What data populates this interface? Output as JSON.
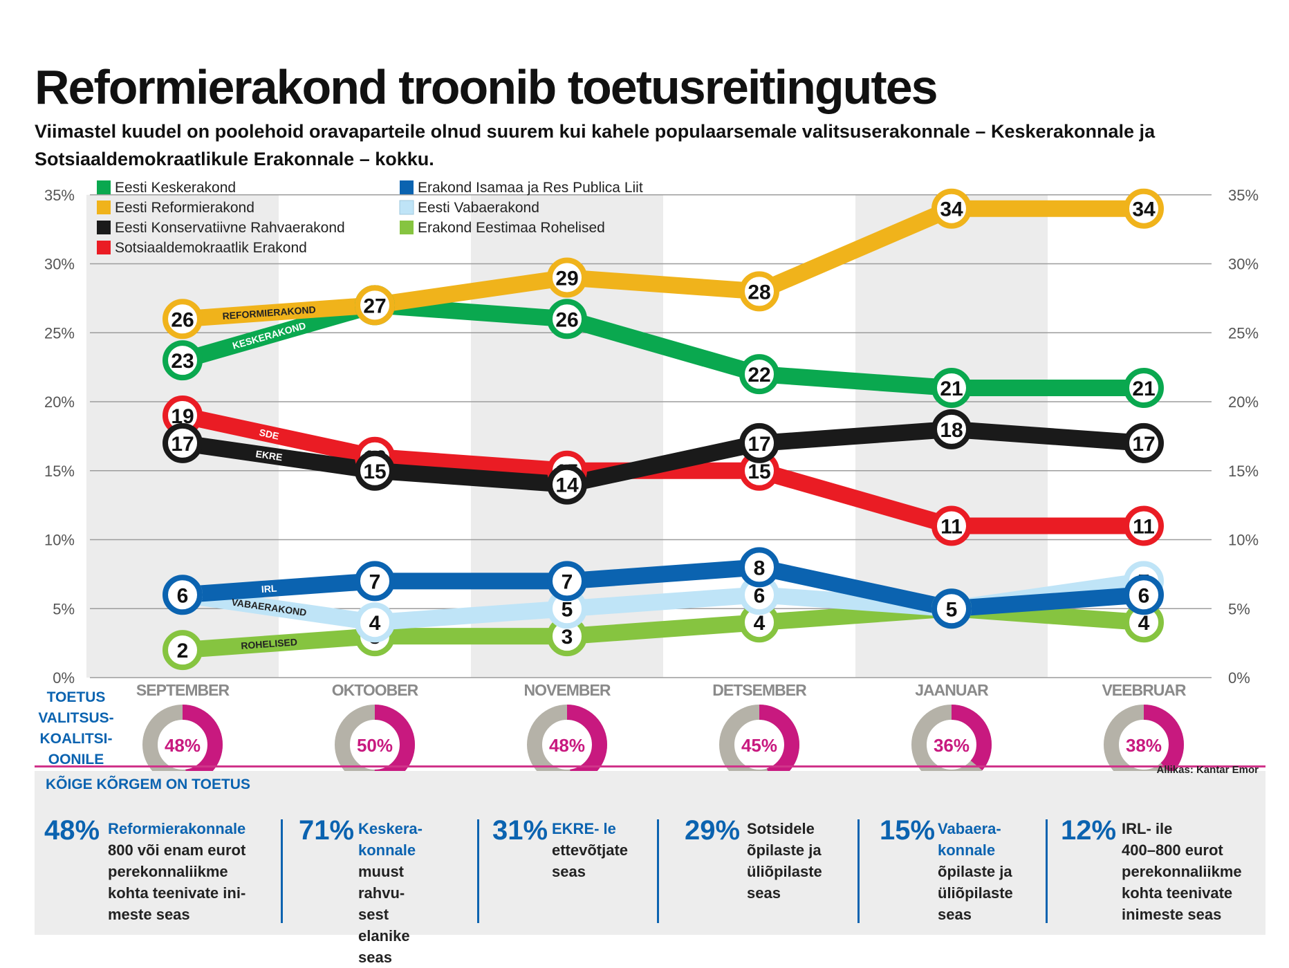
{
  "title": "Reformierakond troonib toetusreitingutes",
  "subtitle": "Viimastel kuudel on poolehoid oravaparteile olnud suurem kui kahele populaarsemale valitsuserakonnale – Keskerakonnale ja Sotsiaaldemokraatlikule Erakonnale –  kokku.",
  "chart_data": {
    "type": "line",
    "categories": [
      "SEPTEMBER",
      "OKTOOBER",
      "NOVEMBER",
      "DETSEMBER",
      "JAANUAR",
      "VEEBRUAR"
    ],
    "ylim": [
      0,
      35
    ],
    "y_ticks": [
      "0%",
      "5%",
      "10%",
      "15%",
      "20%",
      "25%",
      "30%",
      "35%"
    ],
    "grid": true,
    "legend_position": "top-left",
    "series": [
      {
        "name": "Eesti Reformierakond",
        "label": "REFORMIERAKOND",
        "color": "#f0b31b",
        "values": [
          26,
          27,
          29,
          28,
          34,
          34
        ]
      },
      {
        "name": "Eesti Keskerakond",
        "label": "KESKERAKOND",
        "color": "#0aa84f",
        "values": [
          23,
          27,
          26,
          22,
          21,
          21
        ]
      },
      {
        "name": "Sotsiaaldemokraatlik Erakond",
        "label": "SDE",
        "color": "#ea1c24",
        "values": [
          19,
          16,
          15,
          15,
          11,
          11
        ]
      },
      {
        "name": "Eesti Konservatiivne Rahvaerakond",
        "label": "EKRE",
        "color": "#1a1a1a",
        "values": [
          17,
          15,
          14,
          17,
          18,
          17
        ]
      },
      {
        "name": "Erakond Isamaa ja Res Publica Liit",
        "label": "IRL",
        "color": "#0b63b0",
        "values": [
          6,
          7,
          7,
          8,
          5,
          6
        ]
      },
      {
        "name": "Eesti Vabaerakond",
        "label": "VABAERAKOND",
        "color": "#bfe4f7",
        "values": [
          6,
          4,
          5,
          6,
          5,
          7
        ]
      },
      {
        "name": "Erakond Eestimaa Rohelised",
        "label": "ROHELISED",
        "color": "#86c440",
        "values": [
          2,
          3,
          3,
          4,
          5,
          4
        ]
      }
    ],
    "government_support": {
      "label": "TOETUS\nVALITSUS-\nKOALITSI-\nOONILE",
      "values": [
        48,
        50,
        48,
        45,
        36,
        38
      ],
      "labels": [
        "48%",
        "50%",
        "48%",
        "45%",
        "36%",
        "38%"
      ],
      "color": "#c8197f",
      "rest_color": "#b5b2a8"
    }
  },
  "legend_order": [
    [
      "Eesti Keskerakond",
      "Erakond Isamaa ja Res Publica Liit"
    ],
    [
      "Eesti Reformierakond",
      "Eesti Vabaerakond"
    ],
    [
      "Eesti Konservatiivne Rahvaerakond",
      "Erakond Eestimaa Rohelised"
    ],
    [
      "Sotsiaaldemokraatlik Erakond",
      ""
    ]
  ],
  "panel": {
    "heading": "KÕIGE KÕRGEM ON TOETUS",
    "source": "Allikas: Kantar Emor",
    "stats": [
      {
        "pct": "48%",
        "lead": "Reformierakonnale",
        "rest": "800 või enam eurot\nperekonnaliikme\nkohta teenivate ini-\nmeste seas"
      },
      {
        "pct": "71%",
        "lead": "Keskera-\nkonnale",
        "rest": "muust rahvu-\nsest elanike\nseas"
      },
      {
        "pct": "31%",
        "lead": "EKRE- le",
        "rest": "ettevõtjate\nseas"
      },
      {
        "pct": "29%",
        "lead": "",
        "rest": "Sotsidele\nõpilaste ja\nüliõpilaste\nseas"
      },
      {
        "pct": "15%",
        "lead": "Vabaera-\nkonnale",
        "rest": "õpilaste ja\nüliõpilaste\nseas"
      },
      {
        "pct": "12%",
        "lead": "",
        "rest": "IRL- ile\n400–800 eurot\nperekonnaliikme\nkohta teenivate\ninimeste seas"
      }
    ]
  }
}
